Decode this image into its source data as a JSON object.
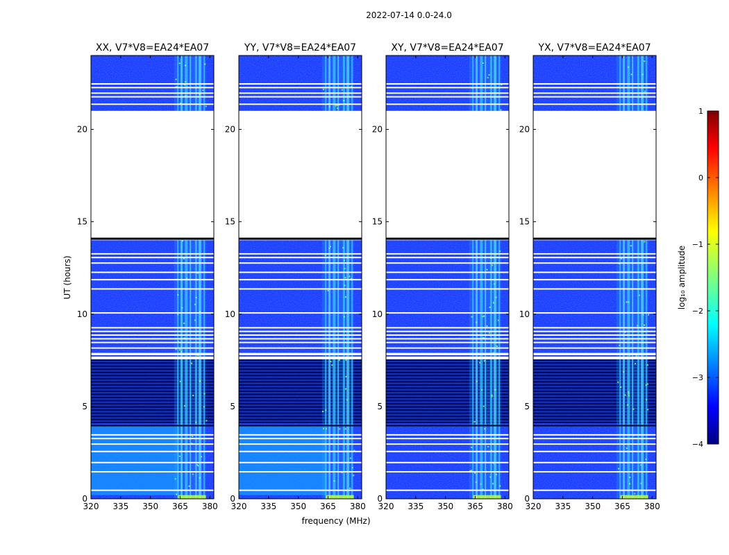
{
  "figure": {
    "suptitle": "2022-07-14 0.0-24.0"
  },
  "chart_data": {
    "type": "heatmap",
    "title": "2022-07-14 0.0-24.0",
    "xlabel": "frequency (MHz)",
    "ylabel": "UT (hours)",
    "xlim": [
      320,
      382
    ],
    "ylim": [
      0,
      24
    ],
    "xticks": [
      "320",
      "335",
      "350",
      "365",
      "380"
    ],
    "yticks": [
      "0",
      "5",
      "10",
      "15",
      "20"
    ],
    "panels": [
      {
        "title": "XX, V7*V8=EA24*EA07",
        "pol": "XX"
      },
      {
        "title": "YY, V7*V8=EA24*EA07",
        "pol": "YY"
      },
      {
        "title": "XY, V7*V8=EA24*EA07",
        "pol": "XY"
      },
      {
        "title": "YX, V7*V8=EA24*EA07",
        "pol": "YX"
      }
    ],
    "data_gap_hours": [
      14.0,
      21.0
    ],
    "rfi_band_mhz": [
      362,
      378
    ],
    "colorbar": {
      "label": "log₁₀ amplitude",
      "min": -4,
      "max": 1,
      "ticks": [
        "1",
        "0",
        "−1",
        "−2",
        "−3",
        "−4"
      ],
      "colormap": "jet"
    }
  },
  "colors": {
    "jet_low": "#00007f",
    "jet_mid": "#00ffff",
    "jet_high": "#7f0000",
    "background": "#ffffff"
  }
}
